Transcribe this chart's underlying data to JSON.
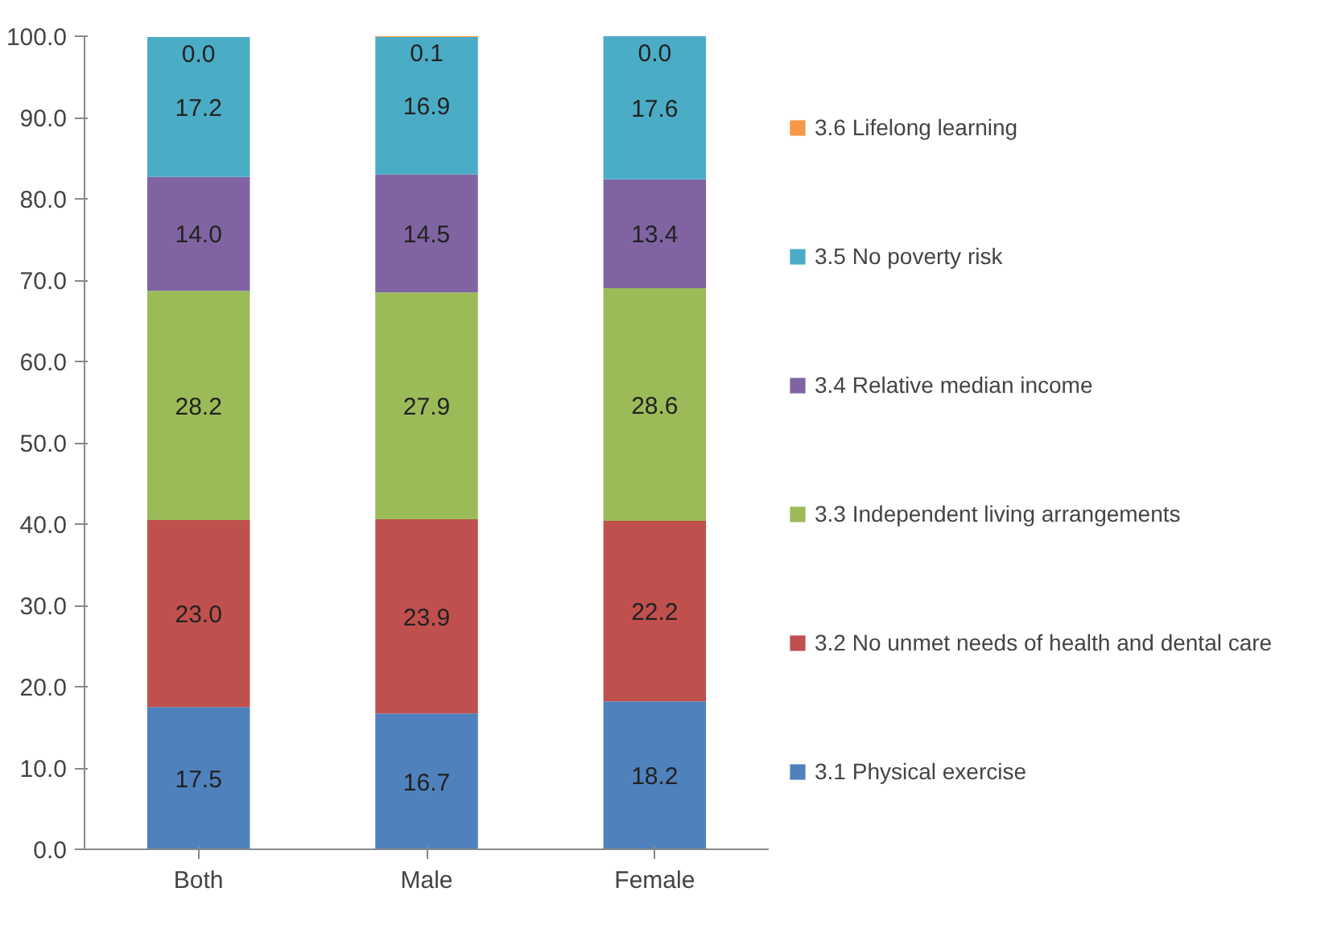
{
  "chart_data": {
    "type": "bar",
    "stacked": true,
    "categories": [
      "Both",
      "Male",
      "Female"
    ],
    "series": [
      {
        "name": "3.1 Physical exercise",
        "color": "#4f81bd",
        "values": [
          17.5,
          16.7,
          18.2
        ],
        "value_labels": [
          "17.5",
          "16.7",
          "18.2"
        ]
      },
      {
        "name": "3.2 No unmet needs of health and dental care",
        "color": "#c0504d",
        "values": [
          23.0,
          23.9,
          22.2
        ],
        "value_labels": [
          "23.0",
          "23.9",
          "22.2"
        ]
      },
      {
        "name": "3.3 Independent living arrangements",
        "color": "#9bbb59",
        "values": [
          28.2,
          27.9,
          28.6
        ],
        "value_labels": [
          "28.2",
          "27.9",
          "28.6"
        ]
      },
      {
        "name": "3.4 Relative median income",
        "color": "#8064a2",
        "values": [
          14.0,
          14.5,
          13.4
        ],
        "value_labels": [
          "14.0",
          "14.5",
          "13.4"
        ]
      },
      {
        "name": "3.5 No poverty risk",
        "color": "#4bacc6",
        "values": [
          17.2,
          16.9,
          17.6
        ],
        "value_labels": [
          "17.2",
          "16.9",
          "17.6"
        ]
      },
      {
        "name": "3.6 Lifelong learning",
        "color": "#f79646",
        "values": [
          0.0,
          0.1,
          0.0
        ],
        "value_labels": [
          "0.0",
          "0.1",
          "0.0"
        ]
      }
    ],
    "ylim": [
      0,
      100
    ],
    "yticks": [
      {
        "value": 0,
        "label": "0.0"
      },
      {
        "value": 10,
        "label": "10.0"
      },
      {
        "value": 20,
        "label": "20.0"
      },
      {
        "value": 30,
        "label": "30.0"
      },
      {
        "value": 40,
        "label": "40.0"
      },
      {
        "value": 50,
        "label": "50.0"
      },
      {
        "value": 60,
        "label": "60.0"
      },
      {
        "value": 70,
        "label": "70.0"
      },
      {
        "value": 80,
        "label": "80.0"
      },
      {
        "value": 90,
        "label": "90.0"
      },
      {
        "value": 100,
        "label": "100.0"
      }
    ],
    "legend": "right",
    "grid": false
  }
}
